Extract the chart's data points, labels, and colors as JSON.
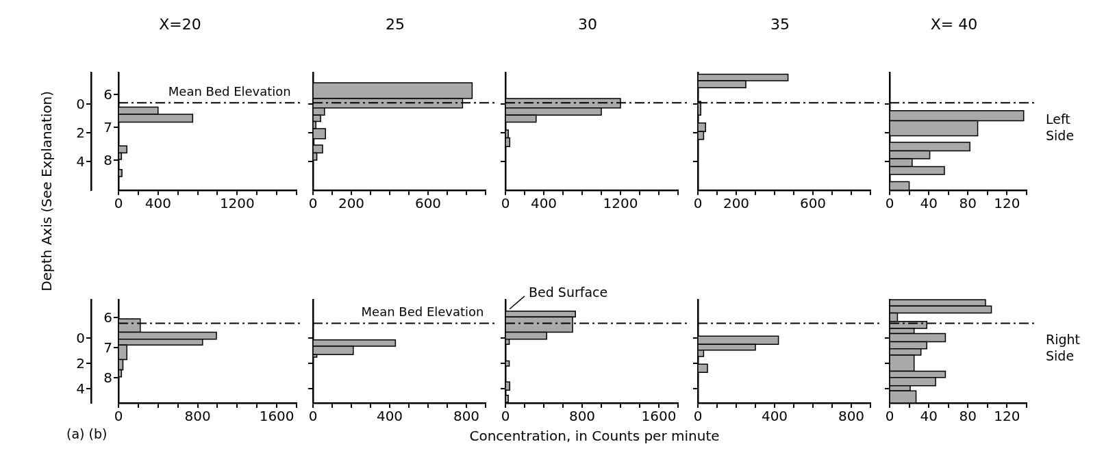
{
  "chart_data": [
    {
      "type": "histogram",
      "orientation": "horizontal",
      "title": "X=20",
      "ylabel": "Depth Axis (See Explanation)",
      "color": "#a9a9a9",
      "bins": [
        0.2,
        0.7,
        1.25,
        2.9,
        3.4,
        3.85,
        4.55,
        5.05
      ],
      "values": [
        400,
        750,
        null,
        85,
        30,
        null,
        35
      ],
      "xlim": [
        0,
        1800
      ],
      "xticks": [
        0,
        {
          "value": 200,
          "label": null
        },
        400,
        {
          "value": 600,
          "label": null
        },
        {
          "value": 800,
          "label": null
        },
        {
          "value": 1000,
          "label": null
        },
        1200,
        {
          "value": 1400,
          "label": null
        },
        {
          "value": 1600,
          "label": null
        },
        {
          "value": 1800,
          "label": null
        }
      ],
      "ylim": [
        6,
        -2.2
      ],
      "yticks": [
        0,
        2,
        4
      ],
      "y2lim": [
        8.9,
        5.35
      ],
      "y2ticks": [
        6,
        7,
        8
      ],
      "ref_lines": [
        {
          "axis": "y",
          "value": -0.1,
          "label": "Mean Bed Elevation",
          "line_style": "dashed"
        }
      ]
    },
    {
      "type": "histogram",
      "orientation": "horizontal",
      "title": "25",
      "color": "#a9a9a9",
      "bins": [
        -1.5,
        -0.4,
        0.25,
        0.75,
        1.2,
        1.7,
        2.4,
        2.85,
        3.4,
        3.9
      ],
      "values": [
        830,
        780,
        60,
        40,
        15,
        65,
        5,
        50,
        20
      ],
      "xlim": [
        0,
        900
      ],
      "xticks": [
        0,
        {
          "value": 100,
          "label": null
        },
        200,
        {
          "value": 300,
          "label": null
        },
        {
          "value": 400,
          "label": null
        },
        {
          "value": 500,
          "label": null
        },
        600,
        {
          "value": 700,
          "label": null
        },
        {
          "value": 800,
          "label": null
        },
        {
          "value": 900,
          "label": null
        }
      ],
      "ylim": [
        6,
        -2.2
      ],
      "yticks": [
        0,
        2,
        4
      ],
      "tick_labels": "x",
      "ref_lines": [
        {
          "axis": "y",
          "value": -0.1,
          "line_style": "dashed"
        }
      ]
    },
    {
      "type": "histogram",
      "orientation": "horizontal",
      "title": "30",
      "color": "#a9a9a9",
      "bins": [
        -0.4,
        0.25,
        0.75,
        1.25,
        1.8,
        2.35,
        2.95
      ],
      "values": [
        1200,
        1000,
        320,
        null,
        30,
        45
      ],
      "xlim": [
        0,
        1800
      ],
      "xticks": [
        0,
        {
          "value": 200,
          "label": null
        },
        400,
        {
          "value": 600,
          "label": null
        },
        {
          "value": 800,
          "label": null
        },
        {
          "value": 1000,
          "label": null
        },
        1200,
        {
          "value": 1400,
          "label": null
        },
        {
          "value": 1600,
          "label": null
        },
        {
          "value": 1800,
          "label": null
        }
      ],
      "ylim": [
        6,
        -2.2
      ],
      "yticks": [
        0,
        2,
        4
      ],
      "tick_labels": "x",
      "ref_lines": [
        {
          "axis": "y",
          "value": -0.1,
          "line_style": "dashed"
        }
      ]
    },
    {
      "type": "histogram",
      "orientation": "horizontal",
      "title": "35",
      "color": "#a9a9a9",
      "bins": [
        -2.1,
        -1.65,
        -1.15,
        -0.2,
        0.75,
        1.3,
        1.9,
        2.45
      ],
      "values": [
        470,
        250,
        null,
        15,
        null,
        40,
        30
      ],
      "xlim": [
        0,
        900
      ],
      "xticks": [
        0,
        {
          "value": 100,
          "label": null
        },
        200,
        {
          "value": 300,
          "label": null
        },
        {
          "value": 400,
          "label": null
        },
        {
          "value": 500,
          "label": null
        },
        600,
        {
          "value": 700,
          "label": null
        },
        {
          "value": 800,
          "label": null
        },
        {
          "value": 900,
          "label": null
        }
      ],
      "ylim": [
        6,
        -2.2
      ],
      "yticks": [
        0,
        2,
        4
      ],
      "tick_labels": "x",
      "ref_lines": [
        {
          "axis": "y",
          "value": -0.1,
          "line_style": "dashed"
        }
      ]
    },
    {
      "type": "histogram",
      "orientation": "horizontal",
      "title": "X= 40",
      "color": "#a9a9a9",
      "bins": [
        0.45,
        1.15,
        2.2,
        2.65,
        3.25,
        3.8,
        4.35,
        4.9,
        5.4,
        6.0
      ],
      "values": [
        137,
        90,
        null,
        82,
        41,
        23,
        56,
        null,
        20
      ],
      "xlim": [
        0,
        140
      ],
      "xticks": [
        0,
        {
          "value": 20,
          "label": null
        },
        40,
        {
          "value": 60,
          "label": null
        },
        80,
        {
          "value": 100,
          "label": null
        },
        120,
        {
          "value": 140,
          "label": null
        }
      ],
      "ylim": [
        6,
        -2.2
      ],
      "yticks": [
        0,
        2,
        4
      ],
      "tick_labels": "x",
      "ref_lines": [
        {
          "axis": "y",
          "value": -0.1,
          "line_style": "dashed"
        }
      ],
      "annotations": [
        "Left Side"
      ]
    },
    {
      "type": "histogram",
      "orientation": "horizontal",
      "color": "#a9a9a9",
      "bins": [
        -1.5,
        -0.45,
        0.1,
        0.55,
        1.7,
        2.5,
        3.05
      ],
      "values": [
        220,
        990,
        850,
        85,
        45,
        30
      ],
      "xlim": [
        0,
        1800
      ],
      "xticks": [
        0,
        {
          "value": 200,
          "label": null
        },
        {
          "value": 400,
          "label": null
        },
        {
          "value": 600,
          "label": null
        },
        800,
        {
          "value": 1000,
          "label": null
        },
        {
          "value": 1200,
          "label": null
        },
        {
          "value": 1400,
          "label": null
        },
        1600,
        {
          "value": 1800,
          "label": null
        }
      ],
      "ylim": [
        5.1,
        -3.0
      ],
      "yticks": [
        0,
        2,
        4
      ],
      "y2lim": [
        8.85,
        5.4
      ],
      "y2ticks": [
        6,
        7,
        8
      ],
      "ref_lines": [
        {
          "axis": "y",
          "value": -1.15,
          "line_style": "dashed"
        }
      ],
      "annotations": [
        "(a) (b)"
      ]
    },
    {
      "type": "histogram",
      "orientation": "horizontal",
      "color": "#a9a9a9",
      "bins": [
        0.15,
        0.65,
        1.3,
        1.5
      ],
      "values": [
        430,
        210,
        20
      ],
      "xlim": [
        0,
        900
      ],
      "xticks": [
        0,
        {
          "value": 100,
          "label": null
        },
        {
          "value": 200,
          "label": null
        },
        {
          "value": 300,
          "label": null
        },
        400,
        {
          "value": 500,
          "label": null
        },
        {
          "value": 600,
          "label": null
        },
        {
          "value": 700,
          "label": null
        },
        800,
        {
          "value": 900,
          "label": null
        }
      ],
      "ylim": [
        5.1,
        -3.0
      ],
      "yticks": [
        0,
        2,
        4
      ],
      "tick_labels": "x",
      "ref_lines": [
        {
          "axis": "y",
          "value": -1.15,
          "label": "Mean Bed Elevation",
          "line_style": "dashed"
        }
      ]
    },
    {
      "type": "histogram",
      "orientation": "horizontal",
      "xlabel": "Concentration, in Counts per minute",
      "color": "#a9a9a9",
      "bins": [
        -2.1,
        -1.65,
        -0.45,
        0.1,
        0.5,
        1.8,
        2.2,
        3.45,
        4.1,
        4.5,
        5.05
      ],
      "values": [
        730,
        700,
        430,
        40,
        null,
        40,
        null,
        45,
        null,
        30
      ],
      "xlim": [
        0,
        1800
      ],
      "xticks": [
        0,
        {
          "value": 200,
          "label": null
        },
        {
          "value": 400,
          "label": null
        },
        {
          "value": 600,
          "label": null
        },
        800,
        {
          "value": 1000,
          "label": null
        },
        {
          "value": 1200,
          "label": null
        },
        {
          "value": 1400,
          "label": null
        },
        1600,
        {
          "value": 1800,
          "label": null
        }
      ],
      "ylim": [
        5.1,
        -3.0
      ],
      "yticks": [
        0,
        2,
        4
      ],
      "tick_labels": "x",
      "ref_lines": [
        {
          "axis": "y",
          "value": -1.15,
          "line_style": "dashed"
        }
      ],
      "annotations": [
        {
          "text": "Bed Surface",
          "x": 0,
          "y": -2.1
        }
      ]
    },
    {
      "type": "histogram",
      "orientation": "horizontal",
      "color": "#a9a9a9",
      "bins": [
        -0.15,
        0.5,
        0.95,
        1.45,
        2.05,
        2.7
      ],
      "values": [
        420,
        300,
        30,
        null,
        50
      ],
      "xlim": [
        0,
        900
      ],
      "xticks": [
        0,
        {
          "value": 100,
          "label": null
        },
        {
          "value": 200,
          "label": null
        },
        {
          "value": 300,
          "label": null
        },
        400,
        {
          "value": 500,
          "label": null
        },
        {
          "value": 600,
          "label": null
        },
        {
          "value": 700,
          "label": null
        },
        800,
        {
          "value": 900,
          "label": null
        }
      ],
      "ylim": [
        5.1,
        -3.0
      ],
      "yticks": [
        0,
        2,
        4
      ],
      "tick_labels": "x",
      "ref_lines": [
        {
          "axis": "y",
          "value": -1.15,
          "line_style": "dashed"
        }
      ]
    },
    {
      "type": "histogram",
      "orientation": "horizontal",
      "color": "#a9a9a9",
      "bins": [
        -3.0,
        -2.5,
        -1.95,
        -1.3,
        -0.75,
        -0.35,
        0.3,
        0.85,
        1.35,
        2.6,
        3.1,
        3.75,
        4.15,
        5.1
      ],
      "values": [
        98,
        104,
        8,
        38,
        25,
        57,
        38,
        32,
        25,
        57,
        47,
        21,
        27
      ],
      "xlim": [
        0,
        140
      ],
      "xticks": [
        0,
        {
          "value": 20,
          "label": null
        },
        40,
        {
          "value": 60,
          "label": null
        },
        80,
        {
          "value": 100,
          "label": null
        },
        120,
        {
          "value": 140,
          "label": null
        }
      ],
      "ylim": [
        5.1,
        -3.0
      ],
      "yticks": [
        0,
        2,
        4
      ],
      "tick_labels": "x",
      "ref_lines": [
        {
          "axis": "y",
          "value": -1.15,
          "line_style": "dashed"
        }
      ],
      "annotations": [
        "Right Side"
      ]
    }
  ]
}
